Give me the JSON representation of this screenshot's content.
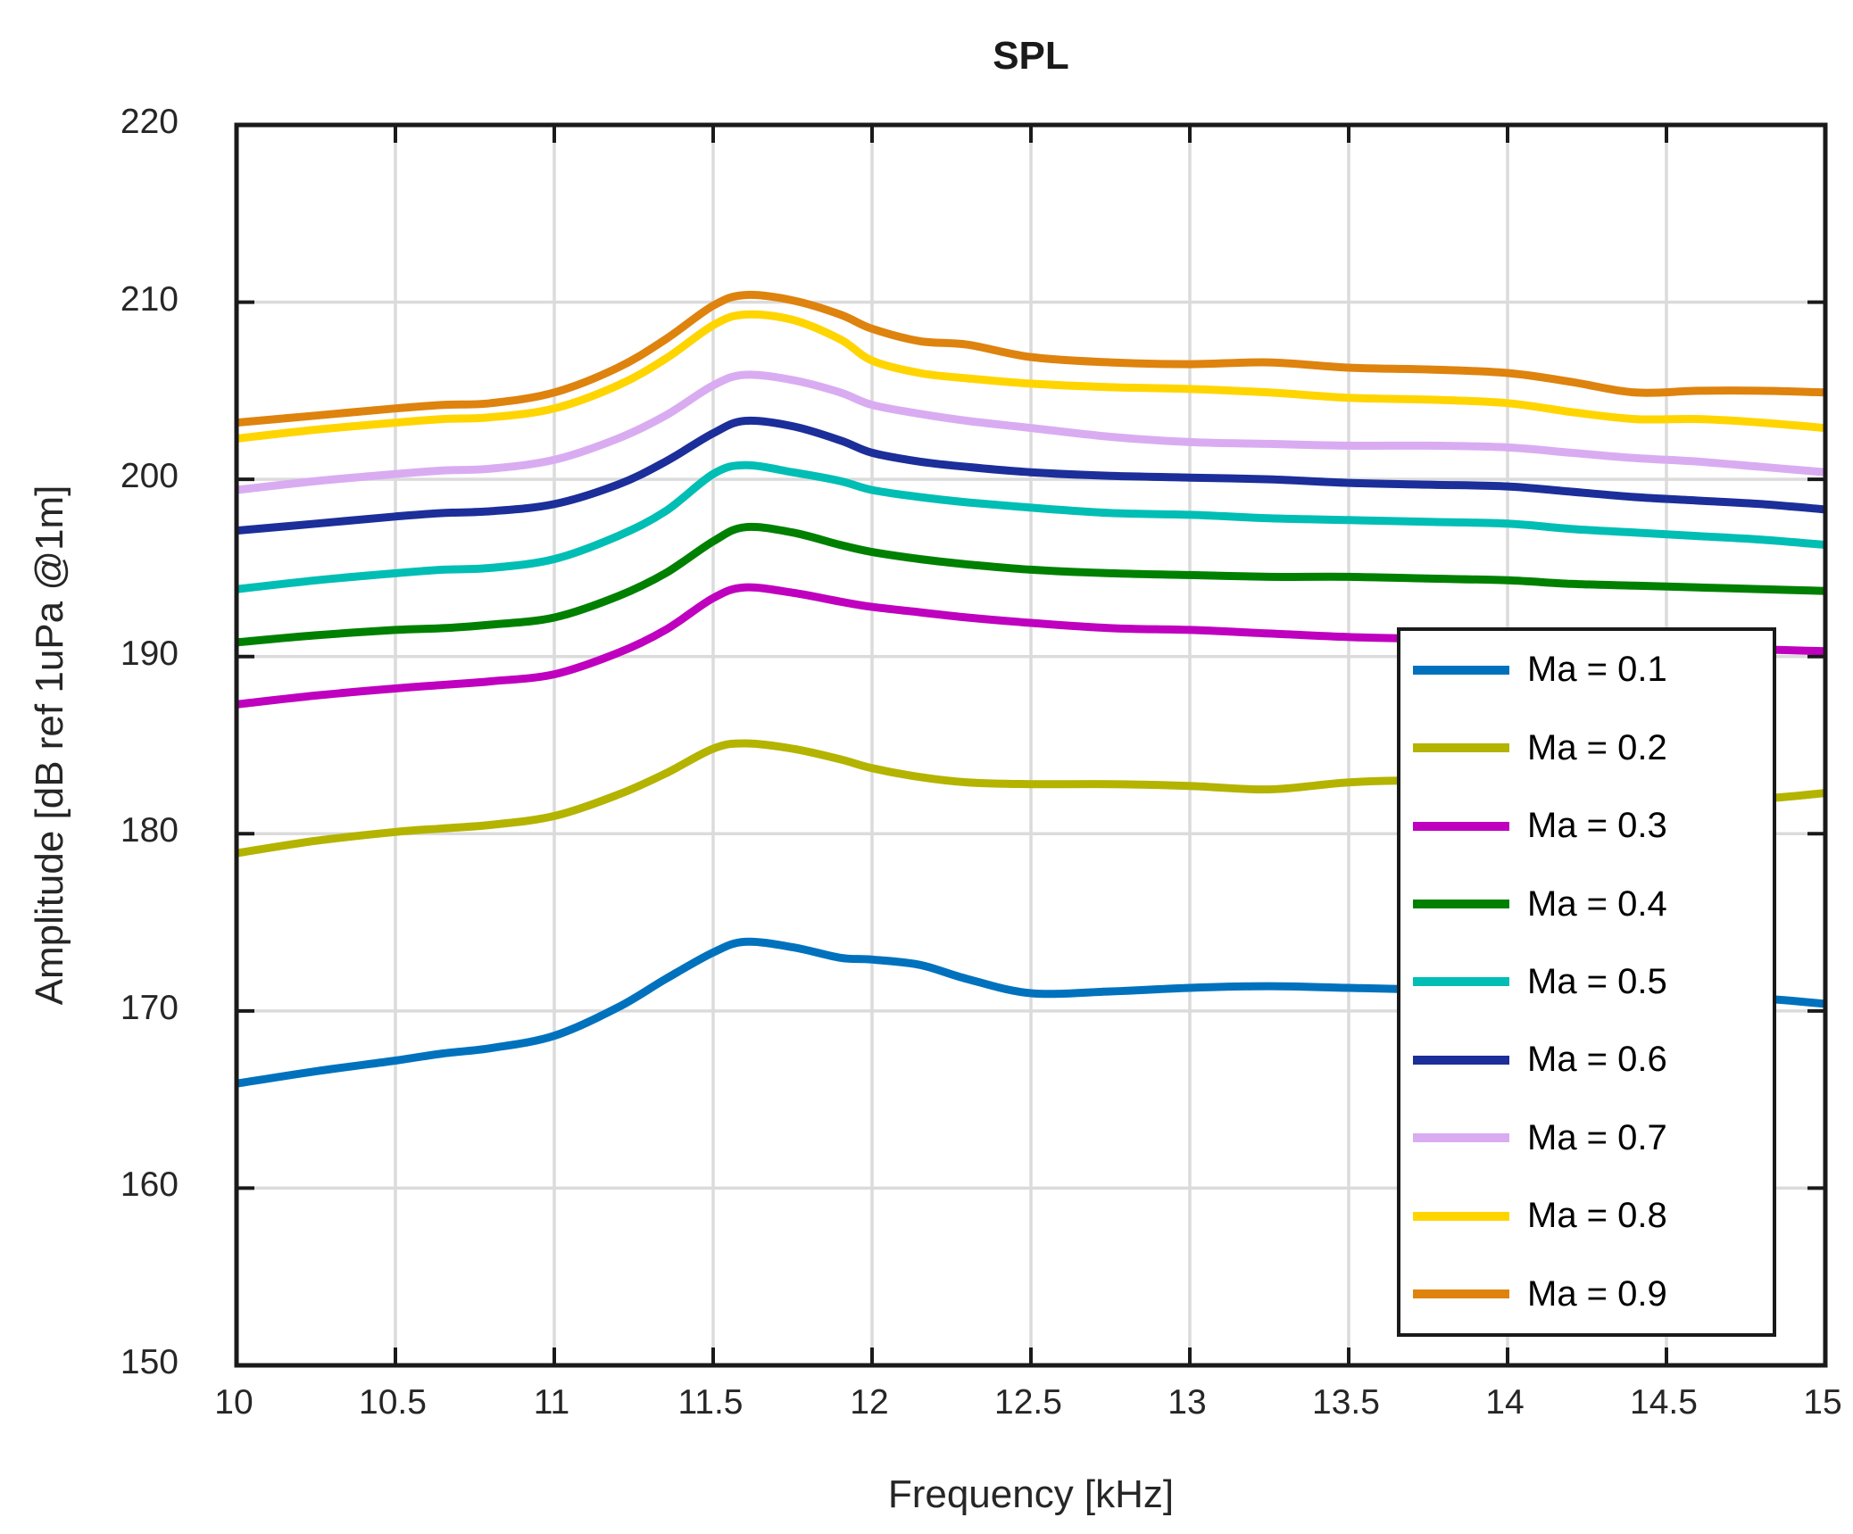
{
  "figure": {
    "title": "SPL",
    "background": "#ffffff"
  },
  "style": {
    "grid_color": "#dbdbdb",
    "axis_color": "#1a1a1a",
    "tick_label_color": "#262626",
    "legend_border_color": "#1a1a1a",
    "plot_background": "#ffffff"
  },
  "chart_data": {
    "type": "line",
    "title": "SPL",
    "xlabel": "Frequency [kHz]",
    "ylabel": "Amplitude [dB ref 1uPa @1m]",
    "xlim": [
      10,
      15
    ],
    "ylim": [
      150,
      220
    ],
    "xticks": [
      10,
      10.5,
      11,
      11.5,
      12,
      12.5,
      13,
      13.5,
      14,
      14.5,
      15
    ],
    "yticks": [
      150,
      160,
      170,
      180,
      190,
      200,
      210,
      220
    ],
    "grid": true,
    "legend_position": "lower right inside",
    "x": [
      10,
      10.25,
      10.5,
      10.65,
      10.8,
      11,
      11.2,
      11.35,
      11.5,
      11.6,
      11.75,
      11.9,
      12,
      12.15,
      12.3,
      12.5,
      12.75,
      13,
      13.25,
      13.5,
      13.75,
      14,
      14.2,
      14.4,
      14.6,
      14.8,
      15
    ],
    "series": [
      {
        "name": "Ma = 0.1",
        "color": "#0072BD",
        "values": [
          165.9,
          166.6,
          167.2,
          167.6,
          167.9,
          168.6,
          170.2,
          171.8,
          173.3,
          173.9,
          173.6,
          173.0,
          172.9,
          172.6,
          171.8,
          171.0,
          171.1,
          171.3,
          171.4,
          171.3,
          171.2,
          171.1,
          171.0,
          170.9,
          170.8,
          170.7,
          170.4
        ]
      },
      {
        "name": "Ma = 0.2",
        "color": "#B3B300",
        "values": [
          178.9,
          179.6,
          180.1,
          180.3,
          180.5,
          181.0,
          182.2,
          183.4,
          184.8,
          185.1,
          184.8,
          184.2,
          183.7,
          183.2,
          182.9,
          182.8,
          182.8,
          182.7,
          182.5,
          182.9,
          183.0,
          182.8,
          182.6,
          182.4,
          182.2,
          182.0,
          182.3
        ]
      },
      {
        "name": "Ma = 0.3",
        "color": "#BF00BF",
        "values": [
          187.3,
          187.8,
          188.2,
          188.4,
          188.6,
          189.0,
          190.2,
          191.5,
          193.3,
          193.9,
          193.6,
          193.1,
          192.8,
          192.5,
          192.2,
          191.9,
          191.6,
          191.5,
          191.3,
          191.1,
          191.0,
          190.9,
          190.7,
          190.6,
          190.5,
          190.4,
          190.3
        ]
      },
      {
        "name": "Ma = 0.4",
        "color": "#008000",
        "values": [
          190.8,
          191.2,
          191.5,
          191.6,
          191.8,
          192.2,
          193.4,
          194.7,
          196.5,
          197.3,
          197.0,
          196.3,
          195.9,
          195.5,
          195.2,
          194.9,
          194.7,
          194.6,
          194.5,
          194.5,
          194.4,
          194.3,
          194.1,
          194.0,
          193.9,
          193.8,
          193.7
        ]
      },
      {
        "name": "Ma = 0.5",
        "color": "#00BEB4",
        "values": [
          193.8,
          194.3,
          194.7,
          194.9,
          195.0,
          195.5,
          196.8,
          198.2,
          200.3,
          200.8,
          200.4,
          199.9,
          199.4,
          199.0,
          198.7,
          198.4,
          198.1,
          198.0,
          197.8,
          197.7,
          197.6,
          197.5,
          197.2,
          197.0,
          196.8,
          196.6,
          196.3
        ]
      },
      {
        "name": "Ma = 0.6",
        "color": "#1C2E99",
        "values": [
          197.1,
          197.5,
          197.9,
          198.1,
          198.2,
          198.6,
          199.7,
          201.0,
          202.6,
          203.3,
          203.0,
          202.2,
          201.5,
          201.0,
          200.7,
          200.4,
          200.2,
          200.1,
          200.0,
          199.8,
          199.7,
          199.6,
          199.3,
          199.0,
          198.8,
          198.6,
          198.3
        ]
      },
      {
        "name": "Ma = 0.7",
        "color": "#D9ACF2",
        "values": [
          199.4,
          199.9,
          200.3,
          200.5,
          200.6,
          201.1,
          202.3,
          203.6,
          205.3,
          205.9,
          205.6,
          204.9,
          204.2,
          203.7,
          203.3,
          202.9,
          202.4,
          202.1,
          202.0,
          201.9,
          201.9,
          201.8,
          201.5,
          201.2,
          201.0,
          200.7,
          200.4
        ]
      },
      {
        "name": "Ma = 0.8",
        "color": "#FFD500",
        "values": [
          202.3,
          202.8,
          203.2,
          203.4,
          203.5,
          204.0,
          205.3,
          206.8,
          208.7,
          209.3,
          209.0,
          207.9,
          206.7,
          206.0,
          205.7,
          205.4,
          205.2,
          205.1,
          204.9,
          204.6,
          204.5,
          204.3,
          203.8,
          203.4,
          203.4,
          203.2,
          202.9
        ]
      },
      {
        "name": "Ma = 0.9",
        "color": "#DE830E",
        "values": [
          203.2,
          203.6,
          204.0,
          204.2,
          204.3,
          204.9,
          206.3,
          207.9,
          209.8,
          210.4,
          210.1,
          209.3,
          208.5,
          207.8,
          207.6,
          206.9,
          206.6,
          206.5,
          206.6,
          206.3,
          206.2,
          206.0,
          205.5,
          204.9,
          205.0,
          205.0,
          204.9
        ]
      }
    ]
  }
}
